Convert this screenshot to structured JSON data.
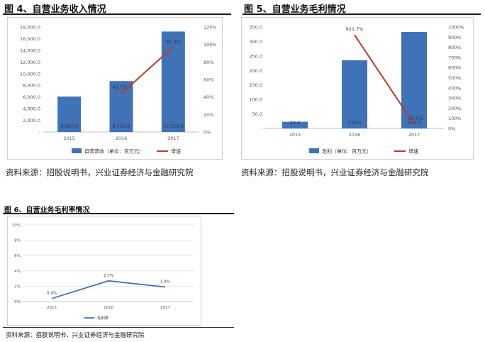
{
  "figures": [
    {
      "title": "图 4、自营业务收入情况",
      "source": "资料来源：招股说明书，兴业证券经济与金融研究院"
    },
    {
      "title": "图 5、自营业务毛利情况",
      "source": "资料来源：招股说明书，兴业证券经济与金融研究院"
    },
    {
      "title": "图 6、自营业务毛利率情况",
      "source": "资料来源：招股说明书，兴业证券经济与金融研究院"
    }
  ],
  "chart_data": [
    {
      "type": "bar",
      "categories": [
        "2015",
        "2016",
        "2017"
      ],
      "series": [
        {
          "name": "自营营收（单位：百万元）",
          "type": "bar",
          "axis": "left",
          "values": [
            6067.0,
            8730.0,
            17218.0
          ],
          "labels": [
            "6,067.0",
            "8,730.0",
            "17,218.0"
          ]
        },
        {
          "name": "增速",
          "type": "line",
          "axis": "right",
          "values": [
            null,
            43.7,
            97.3
          ],
          "labels": [
            "",
            "43.7%",
            "97.3%"
          ]
        }
      ],
      "ylim": [
        0,
        18000
      ],
      "y_ticks": [
        "-",
        "2,000.0",
        "4,000.0",
        "6,000.0",
        "8,000.0",
        "10,000.0",
        "12,000.0",
        "14,000.0",
        "16,000.0",
        "18,000.0"
      ],
      "y2lim": [
        0,
        120
      ],
      "y2_ticks": [
        "0%",
        "20%",
        "40%",
        "60%",
        "80%",
        "100%",
        "120%"
      ],
      "legend": "bottom",
      "colors": {
        "bar": "#3f72b7",
        "line": "#c0392b"
      }
    },
    {
      "type": "bar",
      "categories": [
        "2015",
        "2016",
        "2017"
      ],
      "series": [
        {
          "name": "毛利（单位：百万元）",
          "type": "bar",
          "axis": "left",
          "values": [
            23.0,
            235.0,
            333.0
          ],
          "labels": [
            "23.0",
            "235.0",
            "333.0"
          ]
        },
        {
          "name": "增速",
          "type": "line",
          "axis": "right",
          "values": [
            null,
            921.7,
            41.7
          ],
          "labels": [
            "",
            "921.7%",
            "41.7%"
          ]
        }
      ],
      "ylim": [
        0,
        350
      ],
      "y_ticks": [
        "-",
        "50.0",
        "100.0",
        "150.0",
        "200.0",
        "250.0",
        "300.0",
        "350.0"
      ],
      "y2lim": [
        0,
        1000
      ],
      "y2_ticks": [
        "0%",
        "100%",
        "200%",
        "300%",
        "400%",
        "500%",
        "600%",
        "700%",
        "800%",
        "900%",
        "1000%"
      ],
      "legend": "bottom",
      "colors": {
        "bar": "#3f72b7",
        "line": "#c0392b"
      }
    },
    {
      "type": "line",
      "categories": [
        "2015",
        "2016",
        "2017"
      ],
      "series": [
        {
          "name": "毛利率",
          "values": [
            0.4,
            2.7,
            1.9
          ],
          "labels": [
            "0.4%",
            "2.7%",
            "1.9%"
          ]
        }
      ],
      "ylim": [
        0,
        10
      ],
      "y_ticks": [
        "0%",
        "2%",
        "4%",
        "6%",
        "8%",
        "10%"
      ],
      "grid": true,
      "legend": "bottom",
      "colors": {
        "line": "#3f72b7",
        "grid": "#e2e2e2"
      }
    }
  ]
}
